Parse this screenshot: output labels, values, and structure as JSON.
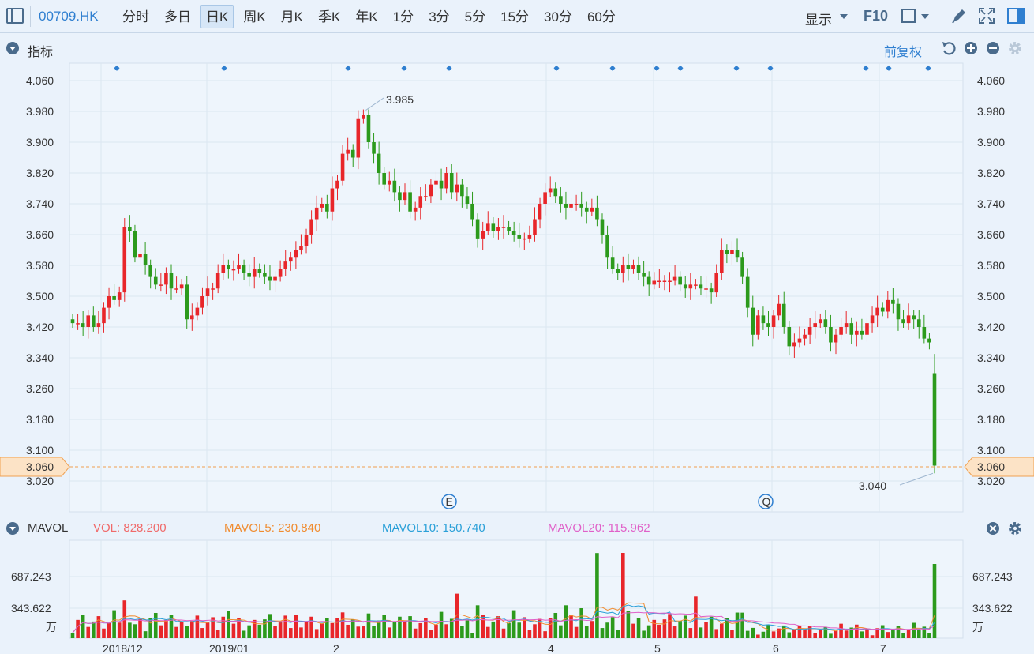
{
  "toolbar": {
    "symbol": "00709.HK",
    "periods": [
      "分时",
      "多日",
      "日K",
      "周K",
      "月K",
      "季K",
      "年K",
      "1分",
      "3分",
      "5分",
      "15分",
      "30分",
      "60分"
    ],
    "active_period": "日K",
    "display_label": "显示",
    "f10_label": "F10"
  },
  "indicator_header": {
    "title": "指标",
    "adjust_label": "前复权"
  },
  "price_axis": {
    "labels": [
      "4.060",
      "3.980",
      "3.900",
      "3.820",
      "3.740",
      "3.660",
      "3.580",
      "3.500",
      "3.420",
      "3.340",
      "3.260",
      "3.180",
      "3.100",
      "3.020"
    ],
    "current_price": "3.060",
    "high_label": "3.985",
    "low_label": "3.040"
  },
  "markers": {
    "event_e": "E",
    "event_q": "Q"
  },
  "volume_header": {
    "title": "MAVOL",
    "vol_label": "VOL:",
    "vol_value": "828.200",
    "ma5_label": "MAVOL5:",
    "ma5_value": "230.840",
    "ma10_label": "MAVOL10:",
    "ma10_value": "150.740",
    "ma20_label": "MAVOL20:",
    "ma20_value": "115.962"
  },
  "volume_axis": {
    "labels": [
      "687.243",
      "343.622"
    ],
    "unit": "万"
  },
  "date_axis": [
    "2018/12",
    "2019/01",
    "2",
    "4",
    "5",
    "6",
    "7"
  ],
  "colors": {
    "up": "#e8262a",
    "down": "#2c9a1c",
    "accent": "#2f7fd0",
    "current_price": "#f0a050",
    "ma5": "#f08c30",
    "ma10": "#2aa0d8",
    "ma20": "#e060c8"
  },
  "chart_data": {
    "type": "candlestick",
    "y_range": [
      3.0,
      4.06
    ],
    "high": 3.985,
    "low": 3.04,
    "close": 3.06,
    "candles_close": [
      3.43,
      3.43,
      3.42,
      3.45,
      3.42,
      3.43,
      3.47,
      3.5,
      3.49,
      3.51,
      3.68,
      3.67,
      3.6,
      3.61,
      3.58,
      3.55,
      3.53,
      3.53,
      3.56,
      3.52,
      3.52,
      3.53,
      3.44,
      3.45,
      3.47,
      3.5,
      3.52,
      3.52,
      3.56,
      3.58,
      3.57,
      3.57,
      3.58,
      3.56,
      3.55,
      3.57,
      3.56,
      3.55,
      3.54,
      3.55,
      3.57,
      3.59,
      3.6,
      3.62,
      3.63,
      3.66,
      3.7,
      3.73,
      3.74,
      3.72,
      3.78,
      3.8,
      3.87,
      3.88,
      3.86,
      3.96,
      3.97,
      3.9,
      3.87,
      3.82,
      3.79,
      3.8,
      3.77,
      3.75,
      3.77,
      3.72,
      3.73,
      3.76,
      3.76,
      3.79,
      3.8,
      3.78,
      3.82,
      3.77,
      3.79,
      3.76,
      3.74,
      3.7,
      3.65,
      3.67,
      3.69,
      3.67,
      3.68,
      3.68,
      3.67,
      3.66,
      3.65,
      3.65,
      3.66,
      3.7,
      3.74,
      3.77,
      3.78,
      3.76,
      3.74,
      3.73,
      3.74,
      3.74,
      3.73,
      3.72,
      3.73,
      3.7,
      3.66,
      3.6,
      3.57,
      3.56,
      3.58,
      3.57,
      3.58,
      3.56,
      3.55,
      3.53,
      3.54,
      3.54,
      3.54,
      3.54,
      3.55,
      3.53,
      3.52,
      3.53,
      3.53,
      3.52,
      3.52,
      3.51,
      3.56,
      3.62,
      3.61,
      3.62,
      3.6,
      3.55,
      3.47,
      3.4,
      3.45,
      3.43,
      3.42,
      3.45,
      3.48,
      3.42,
      3.37,
      3.38,
      3.39,
      3.4,
      3.42,
      3.43,
      3.44,
      3.42,
      3.38,
      3.4,
      3.42,
      3.43,
      3.4,
      3.41,
      3.4,
      3.43,
      3.45,
      3.47,
      3.46,
      3.49,
      3.48,
      3.44,
      3.43,
      3.45,
      3.44,
      3.42,
      3.39,
      3.38,
      3.06
    ],
    "volume_max": 687.243
  }
}
